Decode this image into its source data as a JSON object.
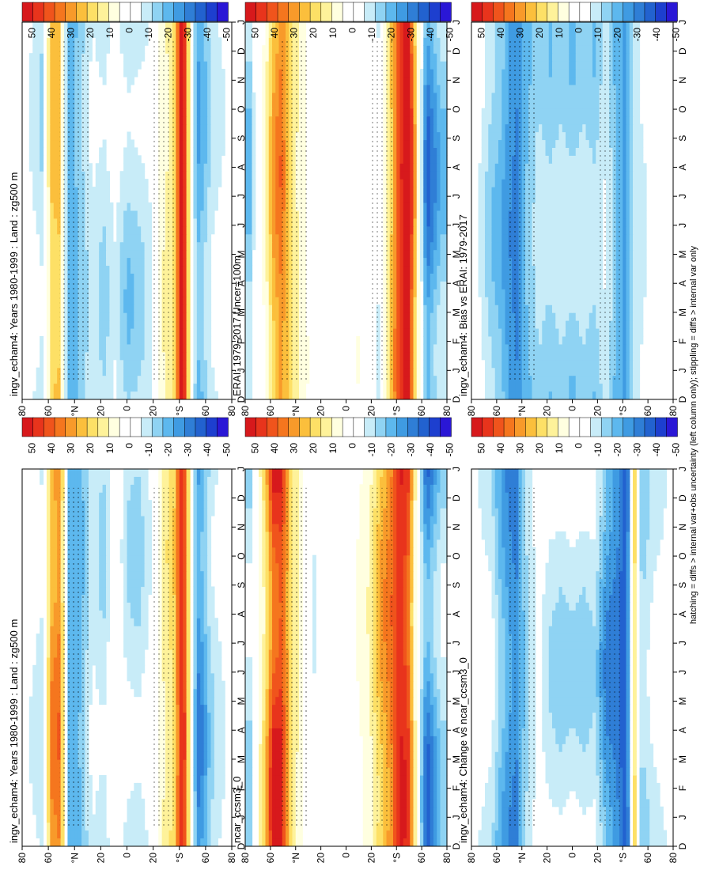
{
  "figure": {
    "footnote": "hatching = diffs > internal var+obs uncertainty (left column only); stippling = diffs > internal var only"
  },
  "colorbar": {
    "labels": [
      "50",
      "40",
      "30",
      "20",
      "10",
      "0",
      "-10",
      "-20",
      "-30",
      "-40",
      "-50"
    ],
    "colors": [
      "#d7191c",
      "#e8341c",
      "#f0541c",
      "#f5761e",
      "#f89a2a",
      "#fbbf3c",
      "#fde066",
      "#fef29a",
      "#ffffe0",
      "#ffffff",
      "#ffffff",
      "#c8ecf8",
      "#8fd3f3",
      "#5db8ee",
      "#3f9be2",
      "#2f7ed6",
      "#2262cf",
      "#1d3fcf",
      "#2a17d6"
    ]
  },
  "panels": [
    {
      "id": "p1",
      "title": "ingv_echam4: Years 1980-1999 : Land : zg500 m",
      "kind": "clim"
    },
    {
      "id": "p2",
      "title": "ingv_echam4: Years 1980-1999 : Land : zg500 m",
      "kind": "clim"
    },
    {
      "id": "p3",
      "title": "ERAI: 1979-2017 Uncer=100m",
      "kind": "obs"
    },
    {
      "id": "p4",
      "title": "ncar_ccsm3_0",
      "kind": "obs"
    },
    {
      "id": "p5",
      "title": "ingv_echam4: Bias vs ERAI: 1979-2017",
      "kind": "bias"
    },
    {
      "id": "p6",
      "title": "ingv_echam4: Change vs ncar_ccsm3_0",
      "kind": "bias"
    }
  ],
  "axes": {
    "month_labels": [
      "D",
      "J",
      "F",
      "M",
      "A",
      "M",
      "J",
      "J",
      "A",
      "S",
      "O",
      "N",
      "D",
      "J"
    ],
    "lat_labels": [
      "80",
      "60",
      "°N",
      "20",
      "0",
      "20",
      "°S",
      "60",
      "80"
    ]
  },
  "chart_data": {
    "type": "heatmap",
    "title": "",
    "xlabel": "",
    "ylabel": "",
    "x_categories": [
      "D",
      "J",
      "F",
      "M",
      "A",
      "M",
      "J",
      "J",
      "A",
      "S",
      "O",
      "N",
      "D",
      "J"
    ],
    "y_ticks": [
      "80",
      "60",
      "°N",
      "20",
      "0",
      "20",
      "°S",
      "60",
      "80"
    ],
    "colorbar_range": [
      -50,
      50
    ],
    "panels": [
      {
        "title": "ingv_echam4: Years 1980-1999 : Land : zg500 m",
        "lat_profile": [
          [
            85,
            -5
          ],
          [
            72,
            -12
          ],
          [
            65,
            18
          ],
          [
            58,
            20
          ],
          [
            50,
            -22
          ],
          [
            42,
            -18
          ],
          [
            30,
            -8
          ],
          [
            20,
            -12
          ],
          [
            10,
            -6
          ],
          [
            0,
            -14
          ],
          [
            -10,
            -12
          ],
          [
            -20,
            -8
          ],
          [
            -30,
            6
          ],
          [
            -40,
            12
          ],
          [
            -48,
            55
          ],
          [
            -55,
            -5
          ],
          [
            -62,
            -22
          ],
          [
            -72,
            -10
          ],
          [
            -85,
            -5
          ]
        ],
        "seasonal_amplitude": 0.45
      },
      {
        "title": "ERAI: 1979-2017 Uncer=100m",
        "lat_profile": [
          [
            85,
            -10
          ],
          [
            72,
            5
          ],
          [
            65,
            22
          ],
          [
            58,
            30
          ],
          [
            50,
            18
          ],
          [
            42,
            6
          ],
          [
            30,
            0
          ],
          [
            20,
            0
          ],
          [
            10,
            -2
          ],
          [
            0,
            0
          ],
          [
            -10,
            2
          ],
          [
            -20,
            0
          ],
          [
            -30,
            -8
          ],
          [
            -40,
            18
          ],
          [
            -48,
            40
          ],
          [
            -55,
            55
          ],
          [
            -62,
            18
          ],
          [
            -72,
            -30
          ],
          [
            -85,
            -15
          ]
        ],
        "seasonal_amplitude": 0.45
      },
      {
        "title": "ingv_echam4: Bias vs ERAI: 1979-2017",
        "lat_profile": [
          [
            85,
            -5
          ],
          [
            72,
            -15
          ],
          [
            65,
            -18
          ],
          [
            58,
            -25
          ],
          [
            50,
            -30
          ],
          [
            42,
            -20
          ],
          [
            30,
            -12
          ],
          [
            20,
            -15
          ],
          [
            10,
            -12
          ],
          [
            0,
            -15
          ],
          [
            -10,
            -12
          ],
          [
            -20,
            -15
          ],
          [
            -30,
            -8
          ],
          [
            -40,
            -20
          ],
          [
            -48,
            -25
          ],
          [
            -55,
            -12
          ],
          [
            -62,
            -8
          ],
          [
            -72,
            -5
          ],
          [
            -85,
            -5
          ]
        ],
        "seasonal_amplitude": 0.35
      },
      {
        "title": "ingv_echam4: Years 1980-1999 : Land : zg500 m",
        "lat_profile": [
          [
            85,
            -5
          ],
          [
            72,
            -10
          ],
          [
            65,
            25
          ],
          [
            58,
            30
          ],
          [
            50,
            -20
          ],
          [
            42,
            -22
          ],
          [
            30,
            -8
          ],
          [
            20,
            -12
          ],
          [
            10,
            0
          ],
          [
            0,
            -10
          ],
          [
            -10,
            -12
          ],
          [
            -20,
            -6
          ],
          [
            -30,
            8
          ],
          [
            -40,
            15
          ],
          [
            -48,
            50
          ],
          [
            -55,
            -5
          ],
          [
            -62,
            -28
          ],
          [
            -72,
            -12
          ],
          [
            -85,
            -5
          ]
        ],
        "seasonal_amplitude": 0.45
      },
      {
        "title": "ncar_ccsm3_0",
        "lat_profile": [
          [
            85,
            -10
          ],
          [
            72,
            15
          ],
          [
            65,
            40
          ],
          [
            58,
            42
          ],
          [
            50,
            18
          ],
          [
            42,
            6
          ],
          [
            30,
            -8
          ],
          [
            20,
            0
          ],
          [
            10,
            -5
          ],
          [
            0,
            0
          ],
          [
            -10,
            2
          ],
          [
            -20,
            6
          ],
          [
            -30,
            20
          ],
          [
            -40,
            30
          ],
          [
            -48,
            45
          ],
          [
            -55,
            40
          ],
          [
            -62,
            5
          ],
          [
            -72,
            -30
          ],
          [
            -85,
            -12
          ]
        ],
        "seasonal_amplitude": 0.5
      },
      {
        "title": "ingv_echam4: Change vs ncar_ccsm3_0",
        "lat_profile": [
          [
            85,
            -5
          ],
          [
            72,
            -8
          ],
          [
            65,
            -18
          ],
          [
            58,
            -25
          ],
          [
            50,
            -30
          ],
          [
            42,
            -15
          ],
          [
            30,
            -5
          ],
          [
            20,
            -10
          ],
          [
            10,
            -12
          ],
          [
            0,
            -10
          ],
          [
            -10,
            -12
          ],
          [
            -20,
            -10
          ],
          [
            -30,
            -25
          ],
          [
            -40,
            -30
          ],
          [
            -48,
            -40
          ],
          [
            -55,
            15
          ],
          [
            -62,
            -15
          ],
          [
            -72,
            -8
          ],
          [
            -85,
            -5
          ]
        ],
        "seasonal_amplitude": 0.5
      }
    ]
  }
}
